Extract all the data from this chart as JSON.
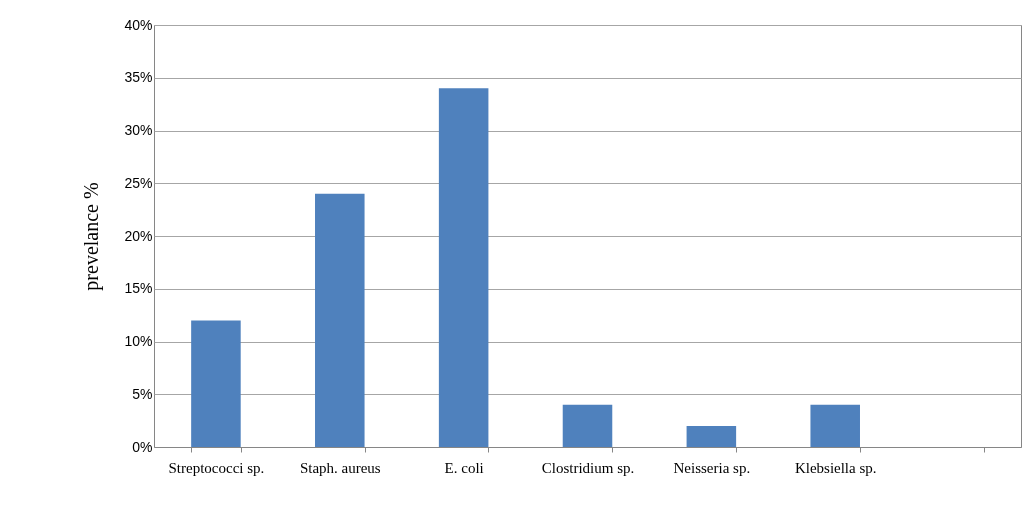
{
  "chart_data": {
    "type": "bar",
    "ylabel": "prevelance %",
    "categories": [
      "Streptococci sp.",
      "Staph. aureus",
      "E. coli",
      "Clostridium sp.",
      "Neisseria sp.",
      "Klebsiella sp.",
      null
    ],
    "values": [
      12,
      24,
      34,
      4,
      2,
      4,
      null
    ],
    "color": "#4f81bd",
    "ylim": [
      0,
      40
    ],
    "yticks": [
      {
        "value": 0,
        "label": "0%"
      },
      {
        "value": 5,
        "label": "5%"
      },
      {
        "value": 10,
        "label": "10%"
      },
      {
        "value": 15,
        "label": "15%"
      },
      {
        "value": 20,
        "label": "20%"
      },
      {
        "value": 25,
        "label": "25%"
      },
      {
        "value": 30,
        "label": "30%"
      },
      {
        "value": 35,
        "label": "35%"
      },
      {
        "value": 40,
        "label": "40%"
      }
    ],
    "grid": "y"
  }
}
